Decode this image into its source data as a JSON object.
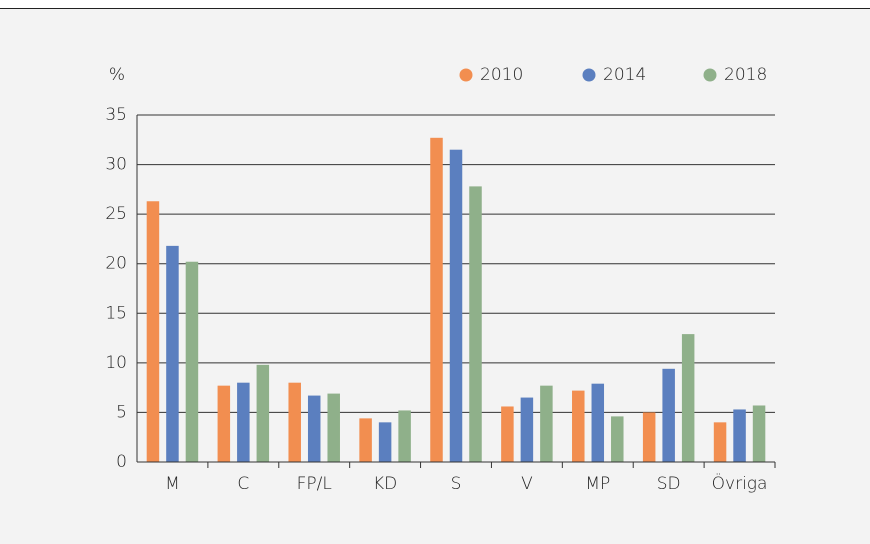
{
  "chart_data": {
    "type": "bar",
    "y_label": "%",
    "categories": [
      "M",
      "C",
      "FP/L",
      "KD",
      "S",
      "V",
      "MP",
      "SD",
      "Övriga"
    ],
    "series": [
      {
        "name": "2010",
        "color": "#f28e50",
        "values": [
          26.3,
          7.7,
          8.0,
          4.4,
          32.7,
          5.6,
          7.2,
          5.0,
          4.0
        ]
      },
      {
        "name": "2014",
        "color": "#5b7fbf",
        "values": [
          21.8,
          8.0,
          6.7,
          4.0,
          31.5,
          6.5,
          7.9,
          9.4,
          5.3
        ]
      },
      {
        "name": "2018",
        "color": "#8fb08a",
        "values": [
          20.2,
          9.8,
          6.9,
          5.2,
          27.8,
          7.7,
          4.6,
          12.9,
          5.7
        ]
      }
    ],
    "ylim": [
      0,
      35
    ],
    "yticks": [
      0,
      5,
      10,
      15,
      20,
      25,
      30,
      35
    ],
    "grid": true,
    "legend": "top-right"
  }
}
